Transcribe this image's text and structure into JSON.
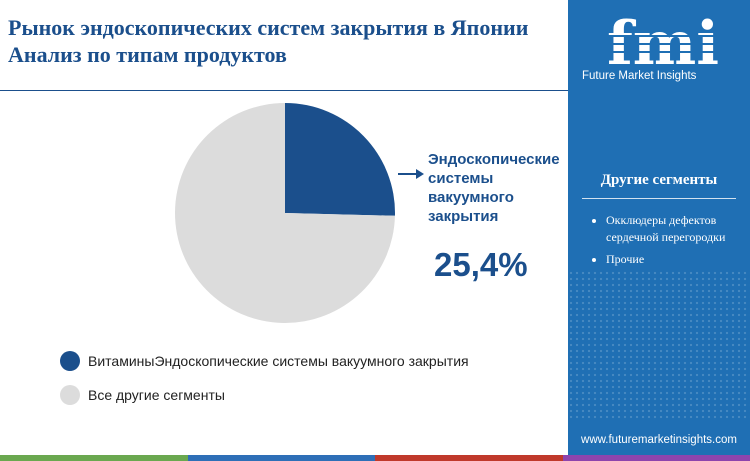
{
  "header": {
    "title": "Рынок эндоскопических систем закрытия в Японии Анализ по типам продуктов"
  },
  "chart_data": {
    "type": "pie",
    "slices": [
      {
        "label": "ВитаминыЭндоскопические системы вакуумного закрытия",
        "value": 25.4,
        "color": "#1b4f8c"
      },
      {
        "label": "Все другие сегменты",
        "value": 74.6,
        "color": "#dcdcdc"
      }
    ],
    "callout": {
      "label": "Эндоскопические системы вакуумного закрытия",
      "value_text": "25,4%"
    },
    "legend_position": "bottom-left"
  },
  "legend": {
    "items": [
      {
        "label": "ВитаминыЭндоскопические системы вакуумного закрытия",
        "color": "#1b4f8c"
      },
      {
        "label": "Все другие сегменты",
        "color": "#dcdcdc"
      }
    ]
  },
  "sidebar": {
    "logo": "fmi",
    "logo_caption": "Future Market Insights",
    "heading": "Другие сегменты",
    "items": [
      {
        "label": "Окклюдеры дефектов сердечной перегородки"
      },
      {
        "label": "Прочие"
      }
    ],
    "website": "www.futuremarketinsights.com",
    "background_color": "#1f6fb4"
  },
  "bottom_bar_colors": [
    "#6aa84f",
    "#2e6fb7",
    "#c0392b",
    "#8e44ad"
  ]
}
